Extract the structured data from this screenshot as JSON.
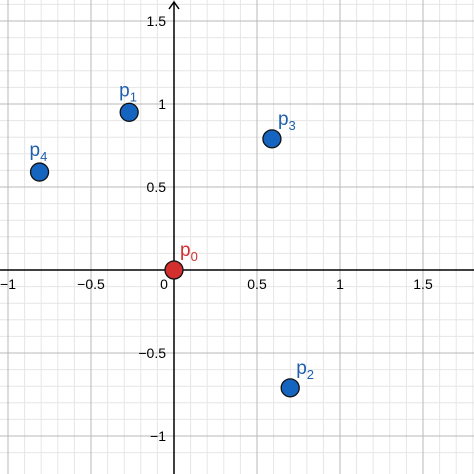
{
  "chart_data": {
    "type": "scatter",
    "title": "",
    "xlabel": "",
    "ylabel": "",
    "xlim": [
      -1.03,
      1.85
    ],
    "ylim": [
      -1.2,
      1.62
    ],
    "grid": true,
    "minor_grid_step": 0.1,
    "major_grid_step": 0.5,
    "x_ticks": [
      {
        "value": -1,
        "label": "−1"
      },
      {
        "value": -0.5,
        "label": "−0.5"
      },
      {
        "value": 0.5,
        "label": "0.5"
      },
      {
        "value": 1,
        "label": "1"
      },
      {
        "value": 1.5,
        "label": "1.5"
      }
    ],
    "y_ticks": [
      {
        "value": 1.5,
        "label": "1.5"
      },
      {
        "value": 1,
        "label": "1"
      },
      {
        "value": 0.5,
        "label": "0.5"
      },
      {
        "value": -0.5,
        "label": "−0.5"
      },
      {
        "value": -1,
        "label": "−1"
      }
    ],
    "origin_label": "0",
    "points": [
      {
        "id": "p0",
        "base": "p",
        "sub": "0",
        "x": 0,
        "y": 0,
        "color": "#d32f2f",
        "label_pos": "top-right"
      },
      {
        "id": "p1",
        "base": "p",
        "sub": "1",
        "x": -0.27,
        "y": 0.95,
        "color": "#1565c0",
        "label_pos": "top"
      },
      {
        "id": "p2",
        "base": "p",
        "sub": "2",
        "x": 0.7,
        "y": -0.71,
        "color": "#1565c0",
        "label_pos": "top-right"
      },
      {
        "id": "p3",
        "base": "p",
        "sub": "3",
        "x": 0.59,
        "y": 0.79,
        "color": "#1565c0",
        "label_pos": "top-right"
      },
      {
        "id": "p4",
        "base": "p",
        "sub": "4",
        "x": -0.81,
        "y": 0.59,
        "color": "#1565c0",
        "label_pos": "top"
      }
    ],
    "colors": {
      "minor_grid": "#e6e6e6",
      "major_grid": "#b8b8b8",
      "axis": "#000000",
      "point_stroke": "#111111",
      "label_blue": "#1f5fae",
      "label_red": "#d32f2f"
    }
  }
}
